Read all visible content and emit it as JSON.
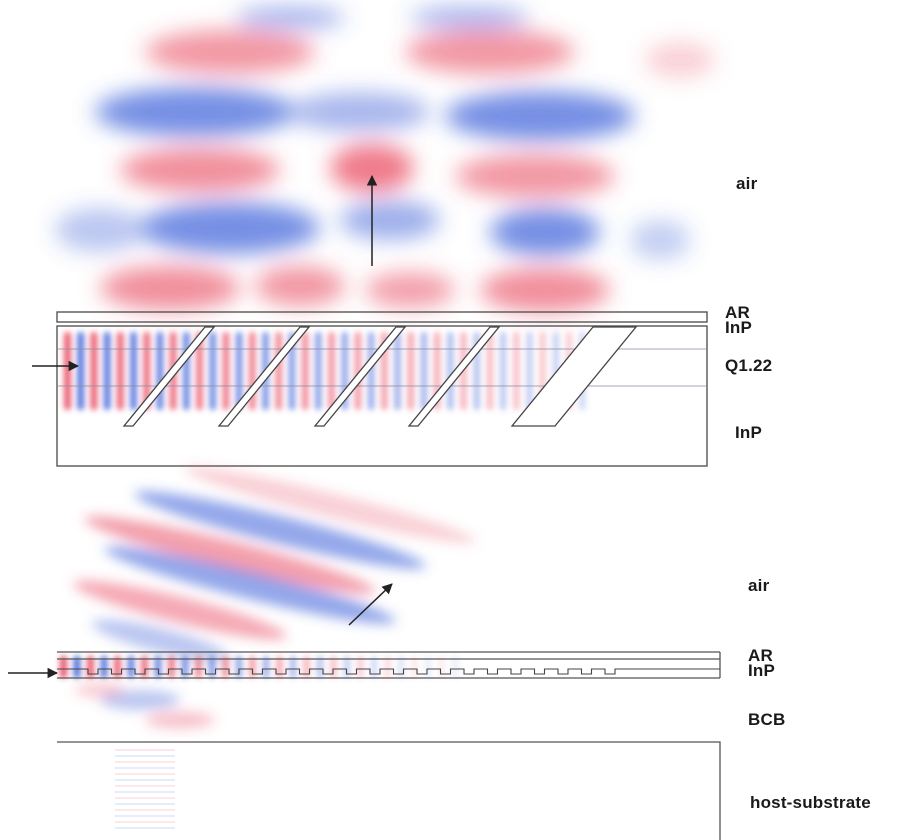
{
  "top_panel": {
    "labels": {
      "air": "air",
      "ar": "AR",
      "inp_upper": "InP",
      "q122": "Q1.22",
      "inp_lower": "InP"
    },
    "slanted_grating_teeth": 5
  },
  "bottom_panel": {
    "labels": {
      "air": "air",
      "ar": "AR",
      "inp": "InP",
      "bcb": "BCB",
      "substrate": "host-substrate"
    },
    "grating_teeth": 23
  },
  "colors": {
    "field_positive": "#e8435a",
    "field_negative": "#3d5fd8",
    "outline": "#555555",
    "arrow": "#222222"
  }
}
